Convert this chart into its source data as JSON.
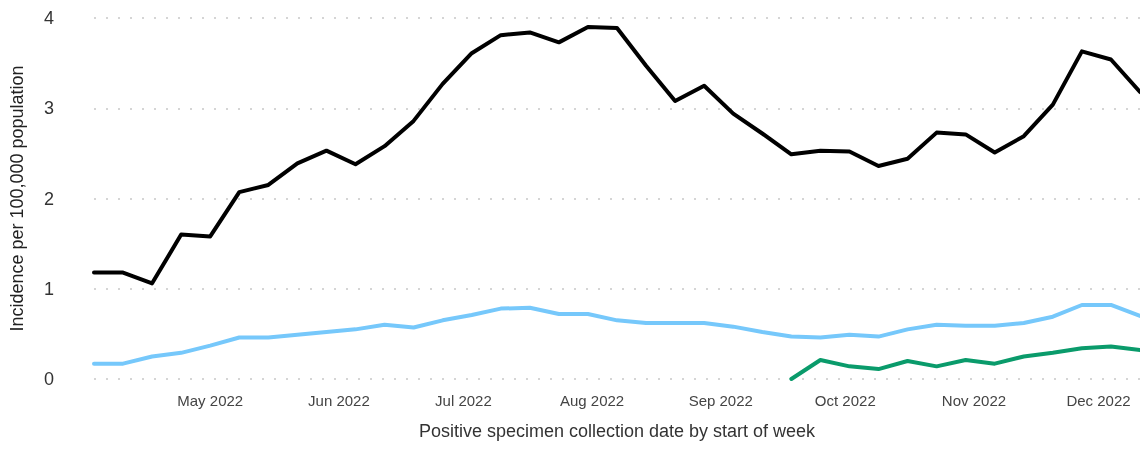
{
  "chart_data": {
    "type": "line",
    "xlabel": "Positive specimen collection date by start of week",
    "ylabel": "Incidence per 100,000 population",
    "x": [
      "2022-04-03",
      "2022-04-10",
      "2022-04-17",
      "2022-04-24",
      "2022-05-01",
      "2022-05-08",
      "2022-05-15",
      "2022-05-22",
      "2022-05-29",
      "2022-06-05",
      "2022-06-12",
      "2022-06-19",
      "2022-06-26",
      "2022-07-03",
      "2022-07-10",
      "2022-07-17",
      "2022-07-24",
      "2022-07-31",
      "2022-08-07",
      "2022-08-14",
      "2022-08-21",
      "2022-08-28",
      "2022-09-04",
      "2022-09-11",
      "2022-09-18",
      "2022-09-25",
      "2022-10-02",
      "2022-10-09",
      "2022-10-16",
      "2022-10-23",
      "2022-10-30",
      "2022-11-06",
      "2022-11-13",
      "2022-11-20",
      "2022-11-27",
      "2022-12-04",
      "2022-12-11"
    ],
    "series": [
      {
        "color": "#000000",
        "values": [
          1.18,
          1.18,
          1.06,
          1.6,
          1.58,
          2.07,
          2.15,
          2.39,
          2.53,
          2.38,
          2.58,
          2.86,
          3.27,
          3.61,
          3.81,
          3.84,
          3.73,
          3.9,
          3.89,
          3.47,
          3.08,
          3.25,
          2.94,
          2.72,
          2.49,
          2.53,
          2.52,
          2.36,
          2.44,
          2.73,
          2.71,
          2.51,
          2.69,
          3.04,
          3.63,
          3.54,
          3.18
        ]
      },
      {
        "color": "#76c8fb",
        "values": [
          0.17,
          0.17,
          0.25,
          0.29,
          0.37,
          0.46,
          0.46,
          0.49,
          0.52,
          0.55,
          0.6,
          0.57,
          0.65,
          0.71,
          0.78,
          0.79,
          0.72,
          0.72,
          0.65,
          0.62,
          0.62,
          0.62,
          0.58,
          0.52,
          0.47,
          0.46,
          0.49,
          0.47,
          0.55,
          0.6,
          0.59,
          0.59,
          0.62,
          0.69,
          0.82,
          0.82,
          0.7
        ]
      },
      {
        "color": "#0a9b6b",
        "values": [
          null,
          null,
          null,
          null,
          null,
          null,
          null,
          null,
          null,
          null,
          null,
          null,
          null,
          null,
          null,
          null,
          null,
          null,
          null,
          null,
          null,
          null,
          null,
          null,
          0,
          0.21,
          0.14,
          0.11,
          0.2,
          0.14,
          0.21,
          0.17,
          0.25,
          0.29,
          0.34,
          0.36,
          0.32
        ]
      }
    ],
    "xlim": [
      "2022-04-03",
      "2022-12-11"
    ],
    "xticks": [
      {
        "value": "2022-05-01",
        "label": "May 2022"
      },
      {
        "value": "2022-06-01",
        "label": "Jun 2022"
      },
      {
        "value": "2022-07-01",
        "label": "Jul 2022"
      },
      {
        "value": "2022-08-01",
        "label": "Aug 2022"
      },
      {
        "value": "2022-09-01",
        "label": "Sep 2022"
      },
      {
        "value": "2022-10-01",
        "label": "Oct 2022"
      },
      {
        "value": "2022-11-01",
        "label": "Nov 2022"
      },
      {
        "value": "2022-12-01",
        "label": "Dec 2022"
      }
    ],
    "ylim": [
      0,
      4
    ],
    "yticks": [
      0,
      1,
      2,
      3,
      4
    ],
    "grid": "y",
    "marker": "none",
    "line_style": "solid"
  }
}
